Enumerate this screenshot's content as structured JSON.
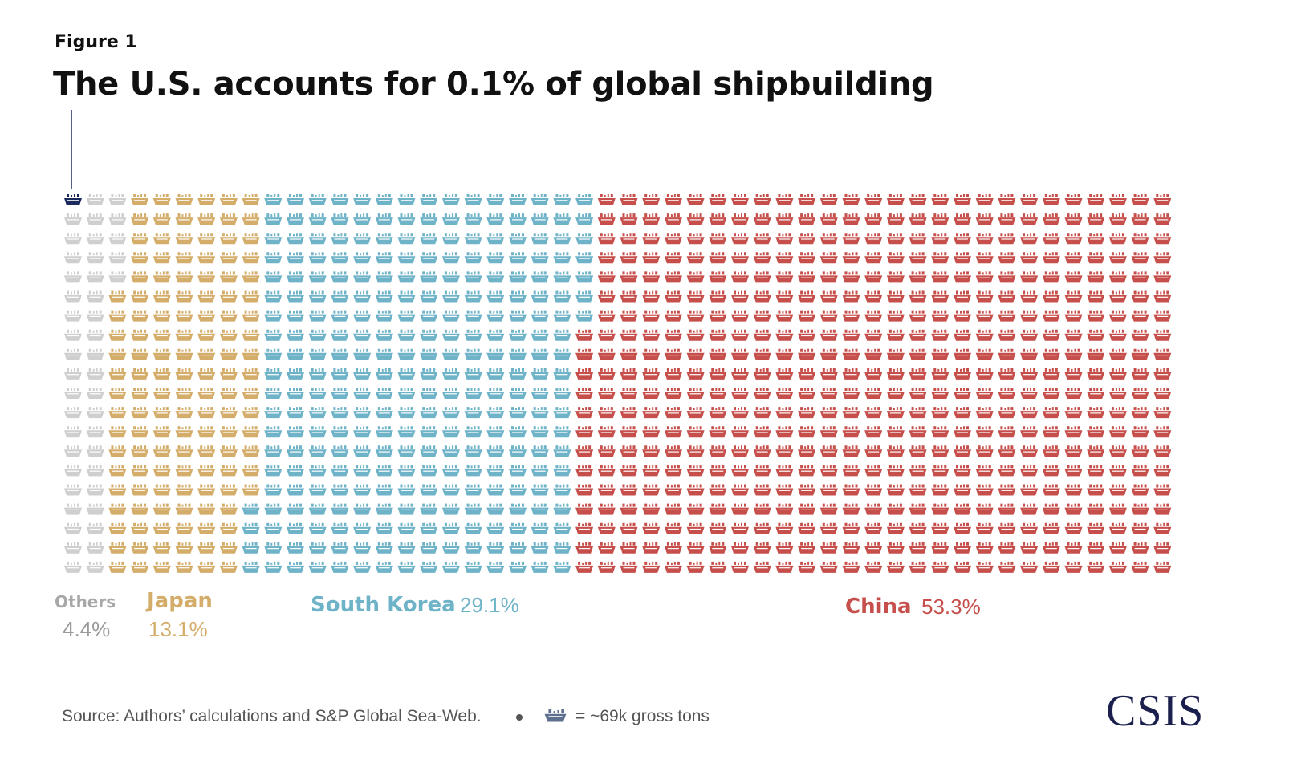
{
  "figure_label": "Figure 1",
  "title": "The U.S. accounts for 0.1% of global shipbuilding",
  "chart_data": {
    "type": "waffle",
    "title": "The U.S. accounts for 0.1% of global shipbuilding",
    "grid": {
      "rows": 20,
      "cols": 50,
      "total_units": 1000
    },
    "unit": "~69k gross tons",
    "fill_order": "column-major, top-to-bottom, left-to-right",
    "series": [
      {
        "name": "U.S.",
        "label": "",
        "pct_label": "",
        "value": 0.1,
        "units": 1,
        "color": "#1b2a5c"
      },
      {
        "name": "Others",
        "label": "Others",
        "pct_label": "4.4%",
        "value": 4.4,
        "units": 44,
        "color": "#cfcfcf"
      },
      {
        "name": "Japan",
        "label": "Japan",
        "pct_label": "13.1%",
        "value": 13.1,
        "units": 131,
        "color": "#d4ad6a"
      },
      {
        "name": "South Korea",
        "label": "South Korea",
        "pct_label": "29.1%",
        "value": 29.1,
        "units": 291,
        "color": "#6fb3c8"
      },
      {
        "name": "China",
        "label": "China",
        "pct_label": "53.3%",
        "value": 53.3,
        "units": 533,
        "color": "#c64f4b"
      }
    ]
  },
  "footer": {
    "source": "Source: Authors’ calculations and S&P Global Sea-Web.",
    "key_text": "= ~69k gross tons",
    "key_icon": "ship-icon",
    "logo": "CSIS"
  },
  "colors": {
    "us": "#1b2a5c",
    "others": "#cfcfcf",
    "japan": "#d4ad6a",
    "south_korea": "#6fb3c8",
    "china": "#c64f4b",
    "text_dark": "#111111",
    "text_muted": "#555555",
    "logo": "#1b1f4d"
  }
}
